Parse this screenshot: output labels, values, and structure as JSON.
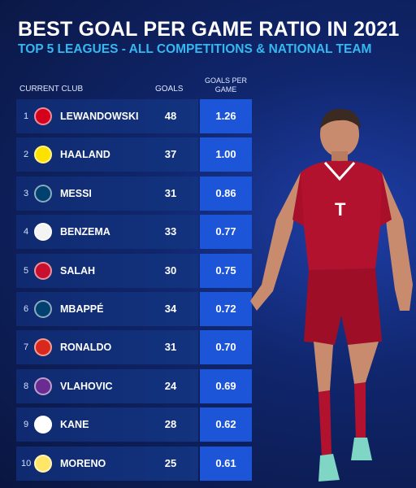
{
  "header": {
    "title": "BEST GOAL PER GAME RATIO IN 2021",
    "subtitle": "TOP 5 LEAGUES - ALL COMPETITIONS & NATIONAL TEAM"
  },
  "columns": {
    "club": "CURRENT CLUB",
    "goals": "GOALS",
    "gpg_line1": "GOALS PER",
    "gpg_line2": "GAME"
  },
  "rows": [
    {
      "rank": "1",
      "name": "LEWANDOWSKI",
      "goals": "48",
      "ratio": "1.26",
      "badge": "bayern-badge-icon",
      "badge_color": "#d4021d"
    },
    {
      "rank": "2",
      "name": "HAALAND",
      "goals": "37",
      "ratio": "1.00",
      "badge": "dortmund-badge-icon",
      "badge_color": "#fde100"
    },
    {
      "rank": "3",
      "name": "MESSI",
      "goals": "31",
      "ratio": "0.86",
      "badge": "psg-badge-icon",
      "badge_color": "#004170"
    },
    {
      "rank": "4",
      "name": "BENZEMA",
      "goals": "33",
      "ratio": "0.77",
      "badge": "real-madrid-badge-icon",
      "badge_color": "#f4f4f4"
    },
    {
      "rank": "5",
      "name": "SALAH",
      "goals": "30",
      "ratio": "0.75",
      "badge": "liverpool-badge-icon",
      "badge_color": "#c8102e"
    },
    {
      "rank": "6",
      "name": "MBAPPÉ",
      "goals": "34",
      "ratio": "0.72",
      "badge": "psg-badge-icon",
      "badge_color": "#004170"
    },
    {
      "rank": "7",
      "name": "RONALDO",
      "goals": "31",
      "ratio": "0.70",
      "badge": "man-united-badge-icon",
      "badge_color": "#da291c"
    },
    {
      "rank": "8",
      "name": "VLAHOVIC",
      "goals": "24",
      "ratio": "0.69",
      "badge": "fiorentina-badge-icon",
      "badge_color": "#6a2c91"
    },
    {
      "rank": "9",
      "name": "KANE",
      "goals": "28",
      "ratio": "0.62",
      "badge": "tottenham-badge-icon",
      "badge_color": "#ffffff"
    },
    {
      "rank": "10",
      "name": "MORENO",
      "goals": "25",
      "ratio": "0.61",
      "badge": "villarreal-badge-icon",
      "badge_color": "#ffe667"
    }
  ],
  "colors": {
    "background": "#10266d",
    "row": "#13337f",
    "ratio_box": "#1d55d8",
    "subtitle": "#37b7f0"
  }
}
